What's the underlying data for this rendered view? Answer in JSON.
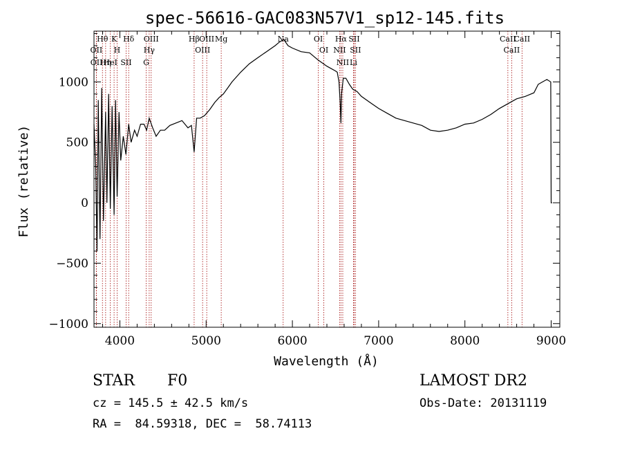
{
  "chart_data": {
    "type": "line",
    "title": "spec-56616-GAC083N57V1_sp12-145.fits",
    "xlabel": "Wavelength (Å)",
    "ylabel": "Flux (relative)",
    "xlim": [
      3700,
      9100
    ],
    "ylim": [
      -1030,
      1420
    ],
    "xticks": [
      4000,
      5000,
      6000,
      7000,
      8000,
      9000
    ],
    "xtick_labels": [
      "4000",
      "5000",
      "6000",
      "7000",
      "8000",
      "9000"
    ],
    "yticks": [
      -1000,
      -500,
      0,
      500,
      1000
    ],
    "ytick_labels": [
      "−1000",
      "−500",
      "0",
      "500",
      "1000"
    ],
    "grid": false,
    "series": [
      {
        "x": [
          3700,
          3720,
          3735,
          3750,
          3770,
          3790,
          3810,
          3835,
          3850,
          3870,
          3889,
          3910,
          3933,
          3950,
          3968,
          3990,
          4010,
          4040,
          4070,
          4102,
          4130,
          4170,
          4200,
          4240,
          4280,
          4310,
          4340,
          4380,
          4420,
          4470,
          4520,
          4580,
          4650,
          4720,
          4790,
          4830,
          4861,
          4890,
          4930,
          4980,
          5040,
          5100,
          5150,
          5200,
          5250,
          5300,
          5400,
          5500,
          5600,
          5700,
          5800,
          5850,
          5900,
          5950,
          6000,
          6100,
          6200,
          6300,
          6400,
          6500,
          6520,
          6540,
          6555,
          6563,
          6570,
          6590,
          6620,
          6660,
          6700,
          6750,
          6800,
          6900,
          7000,
          7100,
          7200,
          7300,
          7400,
          7500,
          7600,
          7700,
          7800,
          7900,
          8000,
          8100,
          8200,
          8300,
          8400,
          8500,
          8600,
          8700,
          8800,
          8850,
          8900,
          8950,
          8995,
          9000,
          9010
        ],
        "y": [
          650,
          300,
          -400,
          850,
          -300,
          950,
          -150,
          750,
          0,
          900,
          -50,
          800,
          -100,
          850,
          50,
          750,
          350,
          550,
          400,
          650,
          500,
          600,
          550,
          650,
          650,
          600,
          700,
          620,
          550,
          600,
          600,
          640,
          660,
          680,
          620,
          640,
          420,
          700,
          700,
          720,
          770,
          830,
          870,
          900,
          950,
          1000,
          1080,
          1150,
          1200,
          1250,
          1300,
          1330,
          1350,
          1300,
          1280,
          1250,
          1240,
          1180,
          1130,
          1090,
          1080,
          1000,
          820,
          660,
          900,
          1030,
          1030,
          980,
          940,
          920,
          880,
          830,
          780,
          740,
          700,
          680,
          660,
          640,
          600,
          590,
          600,
          620,
          650,
          660,
          690,
          730,
          780,
          820,
          860,
          880,
          910,
          980,
          1000,
          1020,
          1000,
          0,
          0
        ]
      }
    ],
    "line_markers": [
      {
        "label": "Hθ",
        "x": 3798
      },
      {
        "label": "OII",
        "x": 3727
      },
      {
        "label": "OII",
        "x": 3729
      },
      {
        "label": "K",
        "x": 3933
      },
      {
        "label": "H",
        "x": 3968
      },
      {
        "label": "HeI",
        "x": 3889
      },
      {
        "label": "Hη",
        "x": 3835
      },
      {
        "label": "Hδ",
        "x": 4102
      },
      {
        "label": "SII",
        "x": 4072
      },
      {
        "label": "OIII",
        "x": 4363
      },
      {
        "label": "Hγ",
        "x": 4340
      },
      {
        "label": "G",
        "x": 4305
      },
      {
        "label": "Hβ",
        "x": 4861
      },
      {
        "label": "OIII",
        "x": 4959
      },
      {
        "label": "OIII",
        "x": 5007
      },
      {
        "label": "Mg",
        "x": 5175
      },
      {
        "label": "Na",
        "x": 5893
      },
      {
        "label": "OI",
        "x": 6300
      },
      {
        "label": "OI",
        "x": 6364
      },
      {
        "label": "Hα",
        "x": 6563
      },
      {
        "label": "NII",
        "x": 6548
      },
      {
        "label": "NII",
        "x": 6584
      },
      {
        "label": "SII",
        "x": 6716
      },
      {
        "label": "SII",
        "x": 6731
      },
      {
        "label": "Li",
        "x": 6708
      },
      {
        "label": "CaII",
        "x": 8498
      },
      {
        "label": "CaII",
        "x": 8542
      },
      {
        "label": "CaII",
        "x": 8662
      }
    ]
  },
  "info": {
    "class": "STAR",
    "subclass": "F0",
    "survey": "LAMOST DR2",
    "cz": "cz = 145.5 ± 42.5 km/s",
    "obsdate": "Obs-Date: 20131119",
    "coords": "RA =  84.59318, DEC =  58.74113"
  },
  "colors": {
    "line": "#000000",
    "marker": "#a00000",
    "background": "#ffffff"
  }
}
